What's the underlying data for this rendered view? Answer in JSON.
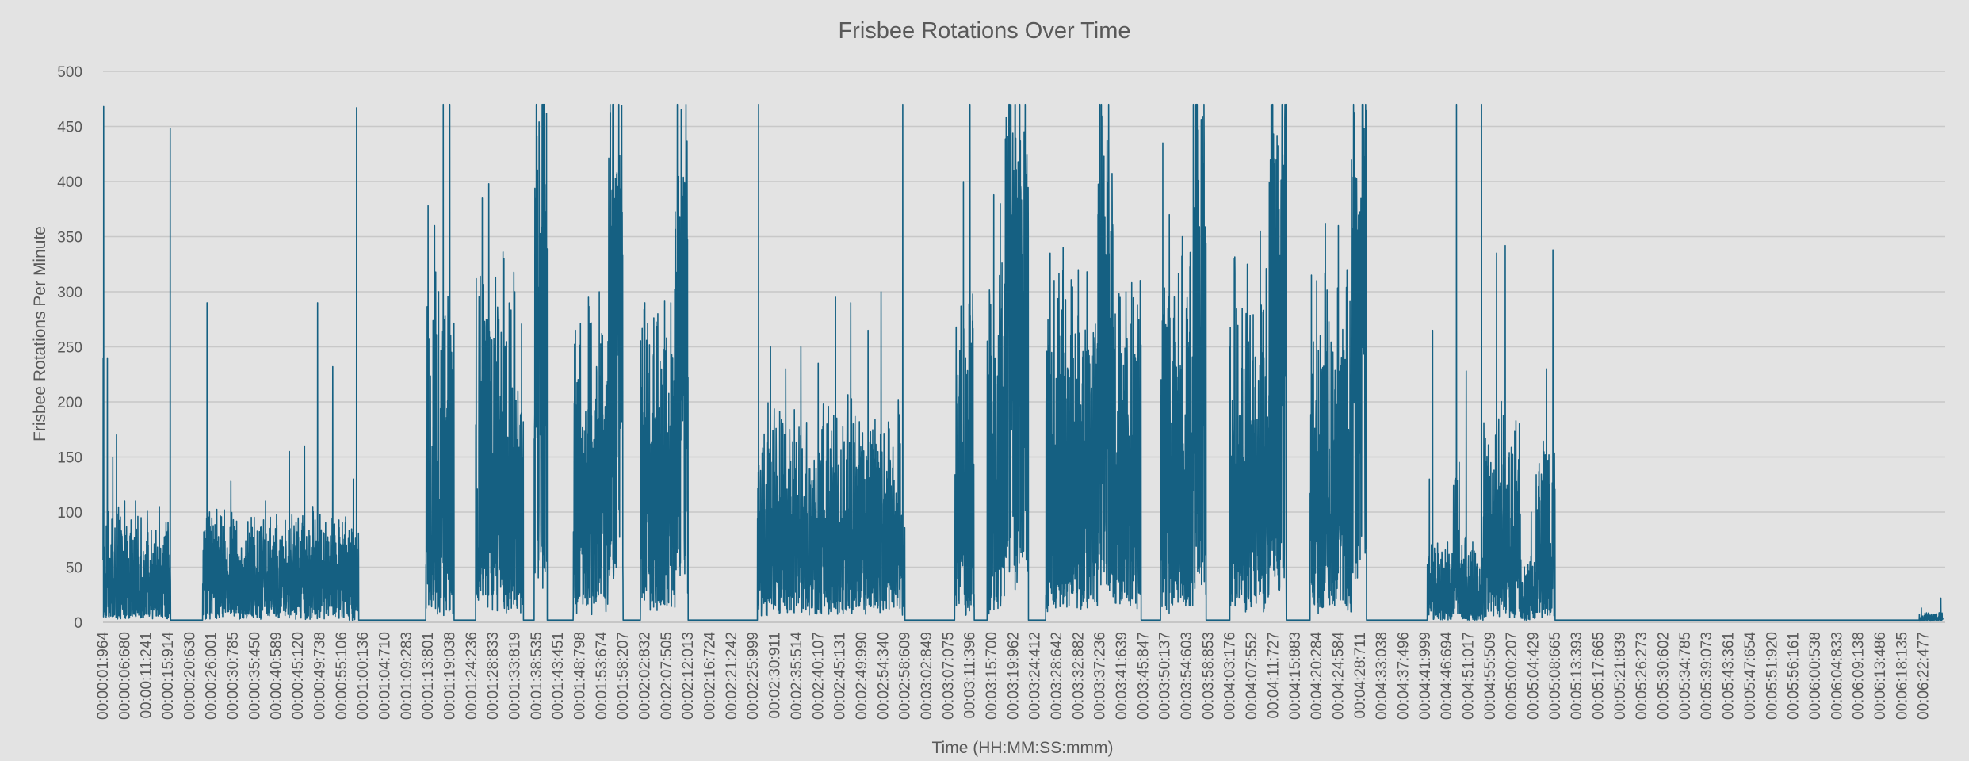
{
  "chart_data": {
    "type": "line",
    "title": "Frisbee Rotations Over Time",
    "xlabel": "Time (HH:MM:SS:mmm)",
    "ylabel": "Frisbee Rotations Per Minute",
    "ylim": [
      0,
      500
    ],
    "yticks": [
      0,
      50,
      100,
      150,
      200,
      250,
      300,
      350,
      400,
      450,
      500
    ],
    "grid": true,
    "legend": "none",
    "line_color": "#156082",
    "background_color": "#e3e3e3",
    "x_tick_labels": [
      "00:00:01:964",
      "00:00:06:680",
      "00:00:11:241",
      "00:00:15:914",
      "00:00:20:630",
      "00:00:26:001",
      "00:00:30:785",
      "00:00:35:450",
      "00:00:40:589",
      "00:00:45:120",
      "00:00:49:738",
      "00:00:55:106",
      "00:01:00:136",
      "00:01:04:710",
      "00:01:09:283",
      "00:01:13:801",
      "00:01:19:038",
      "00:01:24:236",
      "00:01:28:833",
      "00:01:33:819",
      "00:01:38:535",
      "00:01:43:451",
      "00:01:48:798",
      "00:01:53:674",
      "00:01:58:207",
      "00:02:02:832",
      "00:02:07:505",
      "00:02:12:013",
      "00:02:16:724",
      "00:02:21:242",
      "00:02:25:999",
      "00:02:30:911",
      "00:02:35:514",
      "00:02:40:107",
      "00:02:45:131",
      "00:02:49:990",
      "00:02:54:340",
      "00:02:58:609",
      "00:03:02:849",
      "00:03:07:075",
      "00:03:11:396",
      "00:03:15:700",
      "00:03:19:962",
      "00:03:24:412",
      "00:03:28:642",
      "00:03:32:882",
      "00:03:37:236",
      "00:03:41:639",
      "00:03:45:847",
      "00:03:50:137",
      "00:03:54:603",
      "00:03:58:853",
      "00:04:03:176",
      "00:04:07:552",
      "00:04:11:727",
      "00:04:15:883",
      "00:04:20:284",
      "00:04:24:584",
      "00:04:28:711",
      "00:04:33:038",
      "00:04:37:496",
      "00:04:41:999",
      "00:04:46:694",
      "00:04:51:017",
      "00:04:55:509",
      "00:05:00:207",
      "00:05:04:429",
      "00:05:08:665",
      "00:05:13:393",
      "00:05:17:665",
      "00:05:21:839",
      "00:05:26:273",
      "00:05:30:602",
      "00:05:34:785",
      "00:05:39:073",
      "00:05:43:361",
      "00:05:47:654",
      "00:05:51:920",
      "00:05:56:161",
      "00:06:00:538",
      "00:06:04:833",
      "00:06:09:138",
      "00:06:13:486",
      "00:06:18:135",
      "00:06:22:477"
    ],
    "series": [
      {
        "x_range": [
          0,
          85
        ],
        "envelope": [
          {
            "start": 0.0,
            "end": 0.05,
            "base": 25,
            "amp": 110,
            "peaks": [
              [
                0.03,
                468
              ],
              [
                0.01,
                240
              ]
            ]
          },
          {
            "start": 0.05,
            "end": 0.9,
            "base": 30,
            "amp": 70,
            "peaks": [
              [
                0.2,
                240
              ],
              [
                0.45,
                150
              ],
              [
                0.62,
                170
              ]
            ]
          },
          {
            "start": 0.9,
            "end": 3.1,
            "base": 30,
            "amp": 65,
            "peaks": [
              [
                1.0,
                110
              ],
              [
                1.5,
                110
              ],
              [
                2.05,
                90
              ],
              [
                2.6,
                105
              ]
            ]
          },
          {
            "start": 3.08,
            "end": 3.12,
            "base": 30,
            "amp": 30,
            "peaks": [
              [
                3.1,
                448
              ]
            ]
          },
          {
            "start": 3.12,
            "end": 4.6,
            "base": 2,
            "amp": 0,
            "peaks": []
          },
          {
            "start": 4.6,
            "end": 11.3,
            "base": 35,
            "amp": 65,
            "peaks": [
              [
                4.8,
                290
              ],
              [
                5.9,
                128
              ],
              [
                7.5,
                110
              ],
              [
                8.6,
                155
              ],
              [
                9.3,
                160
              ],
              [
                9.9,
                290
              ],
              [
                10.6,
                232
              ]
            ]
          },
          {
            "start": 11.3,
            "end": 11.8,
            "base": 25,
            "amp": 60,
            "peaks": [
              [
                11.55,
                130
              ],
              [
                11.7,
                467
              ]
            ]
          },
          {
            "start": 11.8,
            "end": 14.9,
            "base": 2,
            "amp": 0,
            "peaks": []
          },
          {
            "start": 14.9,
            "end": 16.2,
            "base": 70,
            "amp": 250,
            "peaks": [
              [
                15.0,
                378
              ],
              [
                15.3,
                360
              ],
              [
                15.7,
                470
              ],
              [
                16.0,
                470
              ]
            ]
          },
          {
            "start": 16.2,
            "end": 17.2,
            "base": 2,
            "amp": 0,
            "peaks": []
          },
          {
            "start": 17.2,
            "end": 19.4,
            "base": 100,
            "amp": 220,
            "peaks": [
              [
                17.5,
                385
              ],
              [
                17.8,
                398
              ],
              [
                18.5,
                330
              ],
              [
                19.0,
                300
              ]
            ]
          },
          {
            "start": 19.4,
            "end": 19.9,
            "base": 2,
            "amp": 0,
            "peaks": []
          },
          {
            "start": 19.9,
            "end": 20.5,
            "base": 330,
            "amp": 140,
            "peaks": [
              [
                20.0,
                470
              ],
              [
                20.3,
                470
              ]
            ]
          },
          {
            "start": 20.5,
            "end": 21.7,
            "base": 2,
            "amp": 0,
            "peaks": []
          },
          {
            "start": 21.7,
            "end": 23.3,
            "base": 90,
            "amp": 180,
            "peaks": [
              [
                21.8,
                265
              ],
              [
                22.4,
                295
              ],
              [
                22.9,
                300
              ]
            ]
          },
          {
            "start": 23.3,
            "end": 24.0,
            "base": 320,
            "amp": 150,
            "peaks": [
              [
                23.4,
                470
              ],
              [
                23.8,
                470
              ]
            ]
          },
          {
            "start": 24.0,
            "end": 24.8,
            "base": 2,
            "amp": 0,
            "peaks": []
          },
          {
            "start": 24.8,
            "end": 26.4,
            "base": 120,
            "amp": 160,
            "peaks": [
              [
                25.0,
                290
              ],
              [
                25.6,
                280
              ],
              [
                26.2,
                290
              ]
            ]
          },
          {
            "start": 26.4,
            "end": 27.0,
            "base": 300,
            "amp": 170,
            "peaks": [
              [
                26.5,
                470
              ],
              [
                26.9,
                470
              ]
            ]
          },
          {
            "start": 27.0,
            "end": 30.2,
            "base": 2,
            "amp": 0,
            "peaks": []
          },
          {
            "start": 30.2,
            "end": 30.3,
            "base": 60,
            "amp": 100,
            "peaks": [
              [
                30.25,
                470
              ]
            ]
          },
          {
            "start": 30.3,
            "end": 36.8,
            "base": 70,
            "amp": 130,
            "peaks": [
              [
                30.8,
                250
              ],
              [
                31.5,
                230
              ],
              [
                32.2,
                250
              ],
              [
                33.0,
                235
              ],
              [
                33.8,
                295
              ],
              [
                34.5,
                290
              ],
              [
                35.3,
                265
              ],
              [
                35.9,
                300
              ]
            ]
          },
          {
            "start": 36.8,
            "end": 37.0,
            "base": 60,
            "amp": 40,
            "peaks": [
              [
                36.9,
                470
              ]
            ]
          },
          {
            "start": 37.0,
            "end": 39.3,
            "base": 2,
            "amp": 0,
            "peaks": []
          },
          {
            "start": 39.3,
            "end": 40.2,
            "base": 60,
            "amp": 250,
            "peaks": [
              [
                39.7,
                400
              ],
              [
                40.0,
                470
              ]
            ]
          },
          {
            "start": 40.2,
            "end": 40.8,
            "base": 2,
            "amp": 0,
            "peaks": []
          },
          {
            "start": 40.8,
            "end": 41.6,
            "base": 100,
            "amp": 230,
            "peaks": [
              [
                41.1,
                388
              ],
              [
                41.4,
                380
              ]
            ]
          },
          {
            "start": 41.6,
            "end": 42.7,
            "base": 330,
            "amp": 140,
            "peaks": [
              [
                41.8,
                470
              ],
              [
                42.3,
                470
              ]
            ]
          },
          {
            "start": 42.7,
            "end": 43.5,
            "base": 2,
            "amp": 0,
            "peaks": []
          },
          {
            "start": 43.5,
            "end": 45.9,
            "base": 110,
            "amp": 200,
            "peaks": [
              [
                43.7,
                335
              ],
              [
                44.3,
                340
              ],
              [
                45.0,
                320
              ]
            ]
          },
          {
            "start": 45.9,
            "end": 46.6,
            "base": 320,
            "amp": 150,
            "peaks": [
              [
                46.0,
                470
              ],
              [
                46.4,
                470
              ]
            ]
          },
          {
            "start": 46.6,
            "end": 47.9,
            "base": 110,
            "amp": 200,
            "peaks": [
              [
                47.2,
                300
              ]
            ]
          },
          {
            "start": 47.9,
            "end": 48.8,
            "base": 2,
            "amp": 0,
            "peaks": []
          },
          {
            "start": 48.8,
            "end": 50.3,
            "base": 110,
            "amp": 220,
            "peaks": [
              [
                48.9,
                435
              ],
              [
                49.2,
                370
              ],
              [
                49.8,
                350
              ]
            ]
          },
          {
            "start": 50.3,
            "end": 50.9,
            "base": 320,
            "amp": 150,
            "peaks": [
              [
                50.4,
                470
              ],
              [
                50.8,
                470
              ]
            ]
          },
          {
            "start": 50.9,
            "end": 52.0,
            "base": 2,
            "amp": 0,
            "peaks": []
          },
          {
            "start": 52.0,
            "end": 53.8,
            "base": 110,
            "amp": 210,
            "peaks": [
              [
                52.2,
                330
              ],
              [
                52.8,
                325
              ],
              [
                53.4,
                355
              ]
            ]
          },
          {
            "start": 53.8,
            "end": 54.6,
            "base": 330,
            "amp": 140,
            "peaks": [
              [
                53.9,
                470
              ],
              [
                54.4,
                470
              ]
            ]
          },
          {
            "start": 54.6,
            "end": 55.7,
            "base": 2,
            "amp": 0,
            "peaks": []
          },
          {
            "start": 55.7,
            "end": 57.6,
            "base": 100,
            "amp": 210,
            "peaks": [
              [
                56.0,
                310
              ],
              [
                56.4,
                362
              ],
              [
                57.0,
                360
              ],
              [
                57.4,
                320
              ]
            ]
          },
          {
            "start": 57.6,
            "end": 58.3,
            "base": 320,
            "amp": 150,
            "peaks": [
              [
                57.7,
                470
              ],
              [
                58.1,
                470
              ]
            ]
          },
          {
            "start": 58.3,
            "end": 61.1,
            "base": 2,
            "amp": 0,
            "peaks": []
          },
          {
            "start": 61.1,
            "end": 62.3,
            "base": 20,
            "amp": 50,
            "peaks": [
              [
                61.2,
                130
              ],
              [
                61.35,
                265
              ]
            ]
          },
          {
            "start": 62.3,
            "end": 62.6,
            "base": 40,
            "amp": 120,
            "peaks": [
              [
                62.45,
                470
              ]
            ]
          },
          {
            "start": 62.6,
            "end": 63.7,
            "base": 15,
            "amp": 60,
            "peaks": [
              [
                62.9,
                228
              ],
              [
                63.6,
                470
              ]
            ]
          },
          {
            "start": 63.7,
            "end": 65.4,
            "base": 50,
            "amp": 150,
            "peaks": [
              [
                64.3,
                335
              ],
              [
                64.7,
                342
              ]
            ]
          },
          {
            "start": 65.4,
            "end": 66.1,
            "base": 15,
            "amp": 45,
            "peaks": [
              [
                65.9,
                100
              ]
            ]
          },
          {
            "start": 66.1,
            "end": 67.0,
            "base": 40,
            "amp": 140,
            "peaks": [
              [
                66.6,
                230
              ],
              [
                66.9,
                338
              ]
            ]
          },
          {
            "start": 67.0,
            "end": 83.8,
            "base": 2,
            "amp": 0,
            "peaks": []
          },
          {
            "start": 83.8,
            "end": 84.9,
            "base": 3,
            "amp": 6,
            "peaks": [
              [
                83.9,
                13
              ],
              [
                84.8,
                22
              ]
            ]
          }
        ]
      }
    ]
  }
}
